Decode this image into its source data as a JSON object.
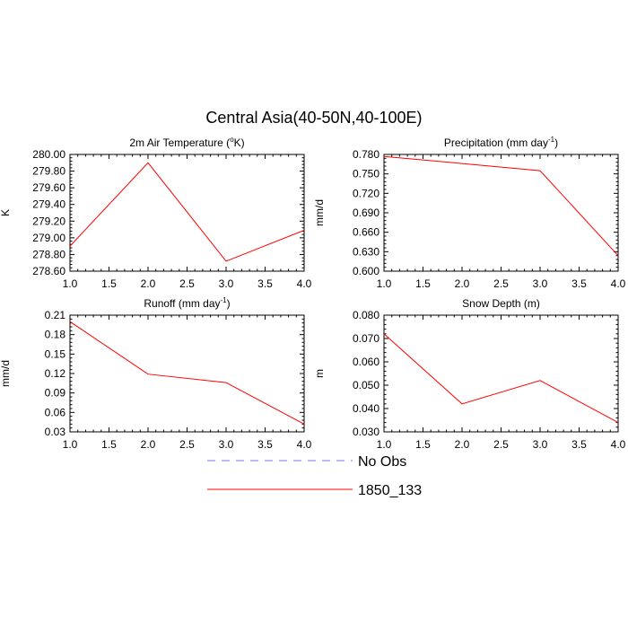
{
  "figure": {
    "title": "Central Asia(40-50N,40-100E)",
    "legend": [
      {
        "label": "No Obs",
        "color": "#7777ff",
        "dashed": true
      },
      {
        "label": "1850_133",
        "color": "#ff0000",
        "dashed": false
      }
    ]
  },
  "chart_data": [
    {
      "type": "line",
      "title": "2m Air Temperature (°K)",
      "title_parts": [
        "2m Air Temperature (",
        "o",
        "K)"
      ],
      "ylabel": "K",
      "xlabel": "",
      "x": [
        1,
        2,
        3,
        4
      ],
      "series": [
        {
          "name": "1850_133",
          "color": "#ff0000",
          "values": [
            278.9,
            279.9,
            278.72,
            279.09
          ]
        }
      ],
      "xlim": [
        1,
        4
      ],
      "ylim": [
        278.6,
        280.0
      ],
      "xticks": [
        "1.0",
        "1.5",
        "2.0",
        "2.5",
        "3.0",
        "3.5",
        "4.0"
      ],
      "yticks": [
        "278.60",
        "278.80",
        "279.00",
        "279.20",
        "279.40",
        "279.60",
        "279.80",
        "280.00"
      ],
      "grid": false
    },
    {
      "type": "line",
      "title": "Precipitation (mm day-1)",
      "title_parts": [
        "Precipitation (mm day",
        "-1",
        ")"
      ],
      "ylabel": "mm/d",
      "xlabel": "",
      "x": [
        1,
        2,
        3,
        4
      ],
      "series": [
        {
          "name": "1850_133",
          "color": "#ff0000",
          "values": [
            0.777,
            0.766,
            0.755,
            0.624
          ]
        }
      ],
      "xlim": [
        1,
        4
      ],
      "ylim": [
        0.6,
        0.78
      ],
      "xticks": [
        "1.0",
        "1.5",
        "2.0",
        "2.5",
        "3.0",
        "3.5",
        "4.0"
      ],
      "yticks": [
        "0.600",
        "0.630",
        "0.660",
        "0.690",
        "0.720",
        "0.750",
        "0.780"
      ],
      "grid": false
    },
    {
      "type": "line",
      "title": "Runoff (mm day-1)",
      "title_parts": [
        "Runoff (mm day",
        "-1",
        ")"
      ],
      "ylabel": "mm/d",
      "xlabel": "",
      "x": [
        1,
        2,
        3,
        4
      ],
      "series": [
        {
          "name": "1850_133",
          "color": "#ff0000",
          "values": [
            0.2,
            0.119,
            0.106,
            0.042
          ]
        }
      ],
      "xlim": [
        1,
        4
      ],
      "ylim": [
        0.03,
        0.21
      ],
      "xticks": [
        "1.0",
        "1.5",
        "2.0",
        "2.5",
        "3.0",
        "3.5",
        "4.0"
      ],
      "yticks": [
        "0.03",
        "0.06",
        "0.09",
        "0.12",
        "0.15",
        "0.18",
        "0.21"
      ],
      "grid": false
    },
    {
      "type": "line",
      "title": "Snow Depth (m)",
      "title_parts": [
        "Snow Depth (m)",
        "",
        ""
      ],
      "ylabel": "m",
      "xlabel": "",
      "x": [
        1,
        2,
        3,
        4
      ],
      "series": [
        {
          "name": "1850_133",
          "color": "#ff0000",
          "values": [
            0.072,
            0.042,
            0.052,
            0.034
          ]
        }
      ],
      "xlim": [
        1,
        4
      ],
      "ylim": [
        0.03,
        0.08
      ],
      "xticks": [
        "1.0",
        "1.5",
        "2.0",
        "2.5",
        "3.0",
        "3.5",
        "4.0"
      ],
      "yticks": [
        "0.030",
        "0.040",
        "0.050",
        "0.060",
        "0.070",
        "0.080"
      ],
      "grid": false
    }
  ]
}
